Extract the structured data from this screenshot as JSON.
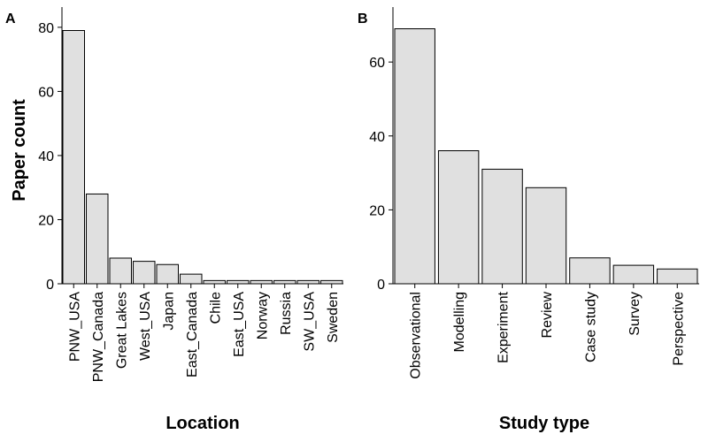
{
  "chart_data": [
    {
      "type": "bar",
      "panel_label": "A",
      "xlabel": "Location",
      "ylabel": "Paper count",
      "ylim": [
        0,
        83
      ],
      "yticks": [
        0,
        20,
        40,
        60,
        80
      ],
      "categories": [
        "PNW_USA",
        "PNW_Canada",
        "Great Lakes",
        "West_USA",
        "Japan",
        "East_Canada",
        "Chile",
        "East_USA",
        "Norway",
        "Russia",
        "SW_USA",
        "Sweden"
      ],
      "values": [
        79,
        28,
        8,
        7,
        6,
        3,
        1,
        1,
        1,
        1,
        1,
        1
      ],
      "grid": false,
      "legend": "none"
    },
    {
      "type": "bar",
      "panel_label": "B",
      "xlabel": "Study type",
      "ylabel": "",
      "ylim": [
        0,
        72
      ],
      "yticks": [
        0,
        20,
        40,
        60
      ],
      "categories": [
        "Observational",
        "Modelling",
        "Experiment",
        "Review",
        "Case study",
        "Survey",
        "Perspective"
      ],
      "values": [
        69,
        36,
        31,
        26,
        7,
        5,
        4
      ],
      "grid": false,
      "legend": "none"
    }
  ]
}
